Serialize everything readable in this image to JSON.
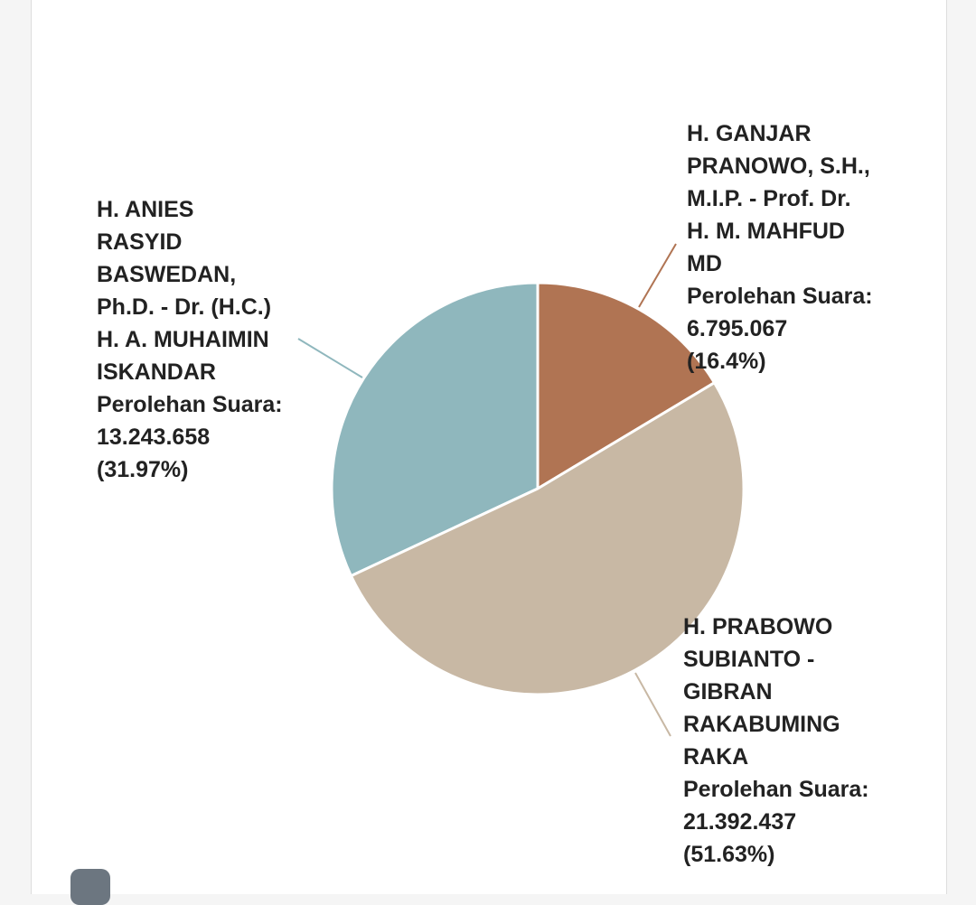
{
  "chart_data": {
    "type": "pie",
    "slices": [
      {
        "label": "H. ANIES RASYID BASWEDAN, Ph.D. - Dr. (H.C.) H. A. MUHAIMIN ISKANDAR",
        "display": "H. ANIES\nRASYID\nBASWEDAN,\nPh.D. - Dr. (H.C.)\nH. A. MUHAIMIN\nISKANDAR\nPerolehan Suara:\n13.243.658\n(31.97%)",
        "value": 13243658,
        "percent": 31.97,
        "color": "#8fb7bd"
      },
      {
        "label": "H. GANJAR PRANOWO, S.H., M.I.P. - Prof. Dr. H. M. MAHFUD MD",
        "display": "H. GANJAR\nPRANOWO, S.H.,\nM.I.P. - Prof. Dr.\nH. M. MAHFUD\nMD\nPerolehan Suara:\n6.795.067\n(16.4%)",
        "value": 6795067,
        "percent": 16.4,
        "color": "#b07453"
      },
      {
        "label": "H. PRABOWO SUBIANTO - GIBRAN RAKABUMING RAKA",
        "display": "H. PRABOWO\nSUBIANTO -\nGIBRAN\nRAKABUMING\nRAKA\nPerolehan Suara:\n21.392.437\n(51.63%)",
        "value": 21392437,
        "percent": 51.63,
        "color": "#c8b8a4"
      }
    ],
    "start_angle_deg": 0,
    "direction": "clockwise"
  }
}
